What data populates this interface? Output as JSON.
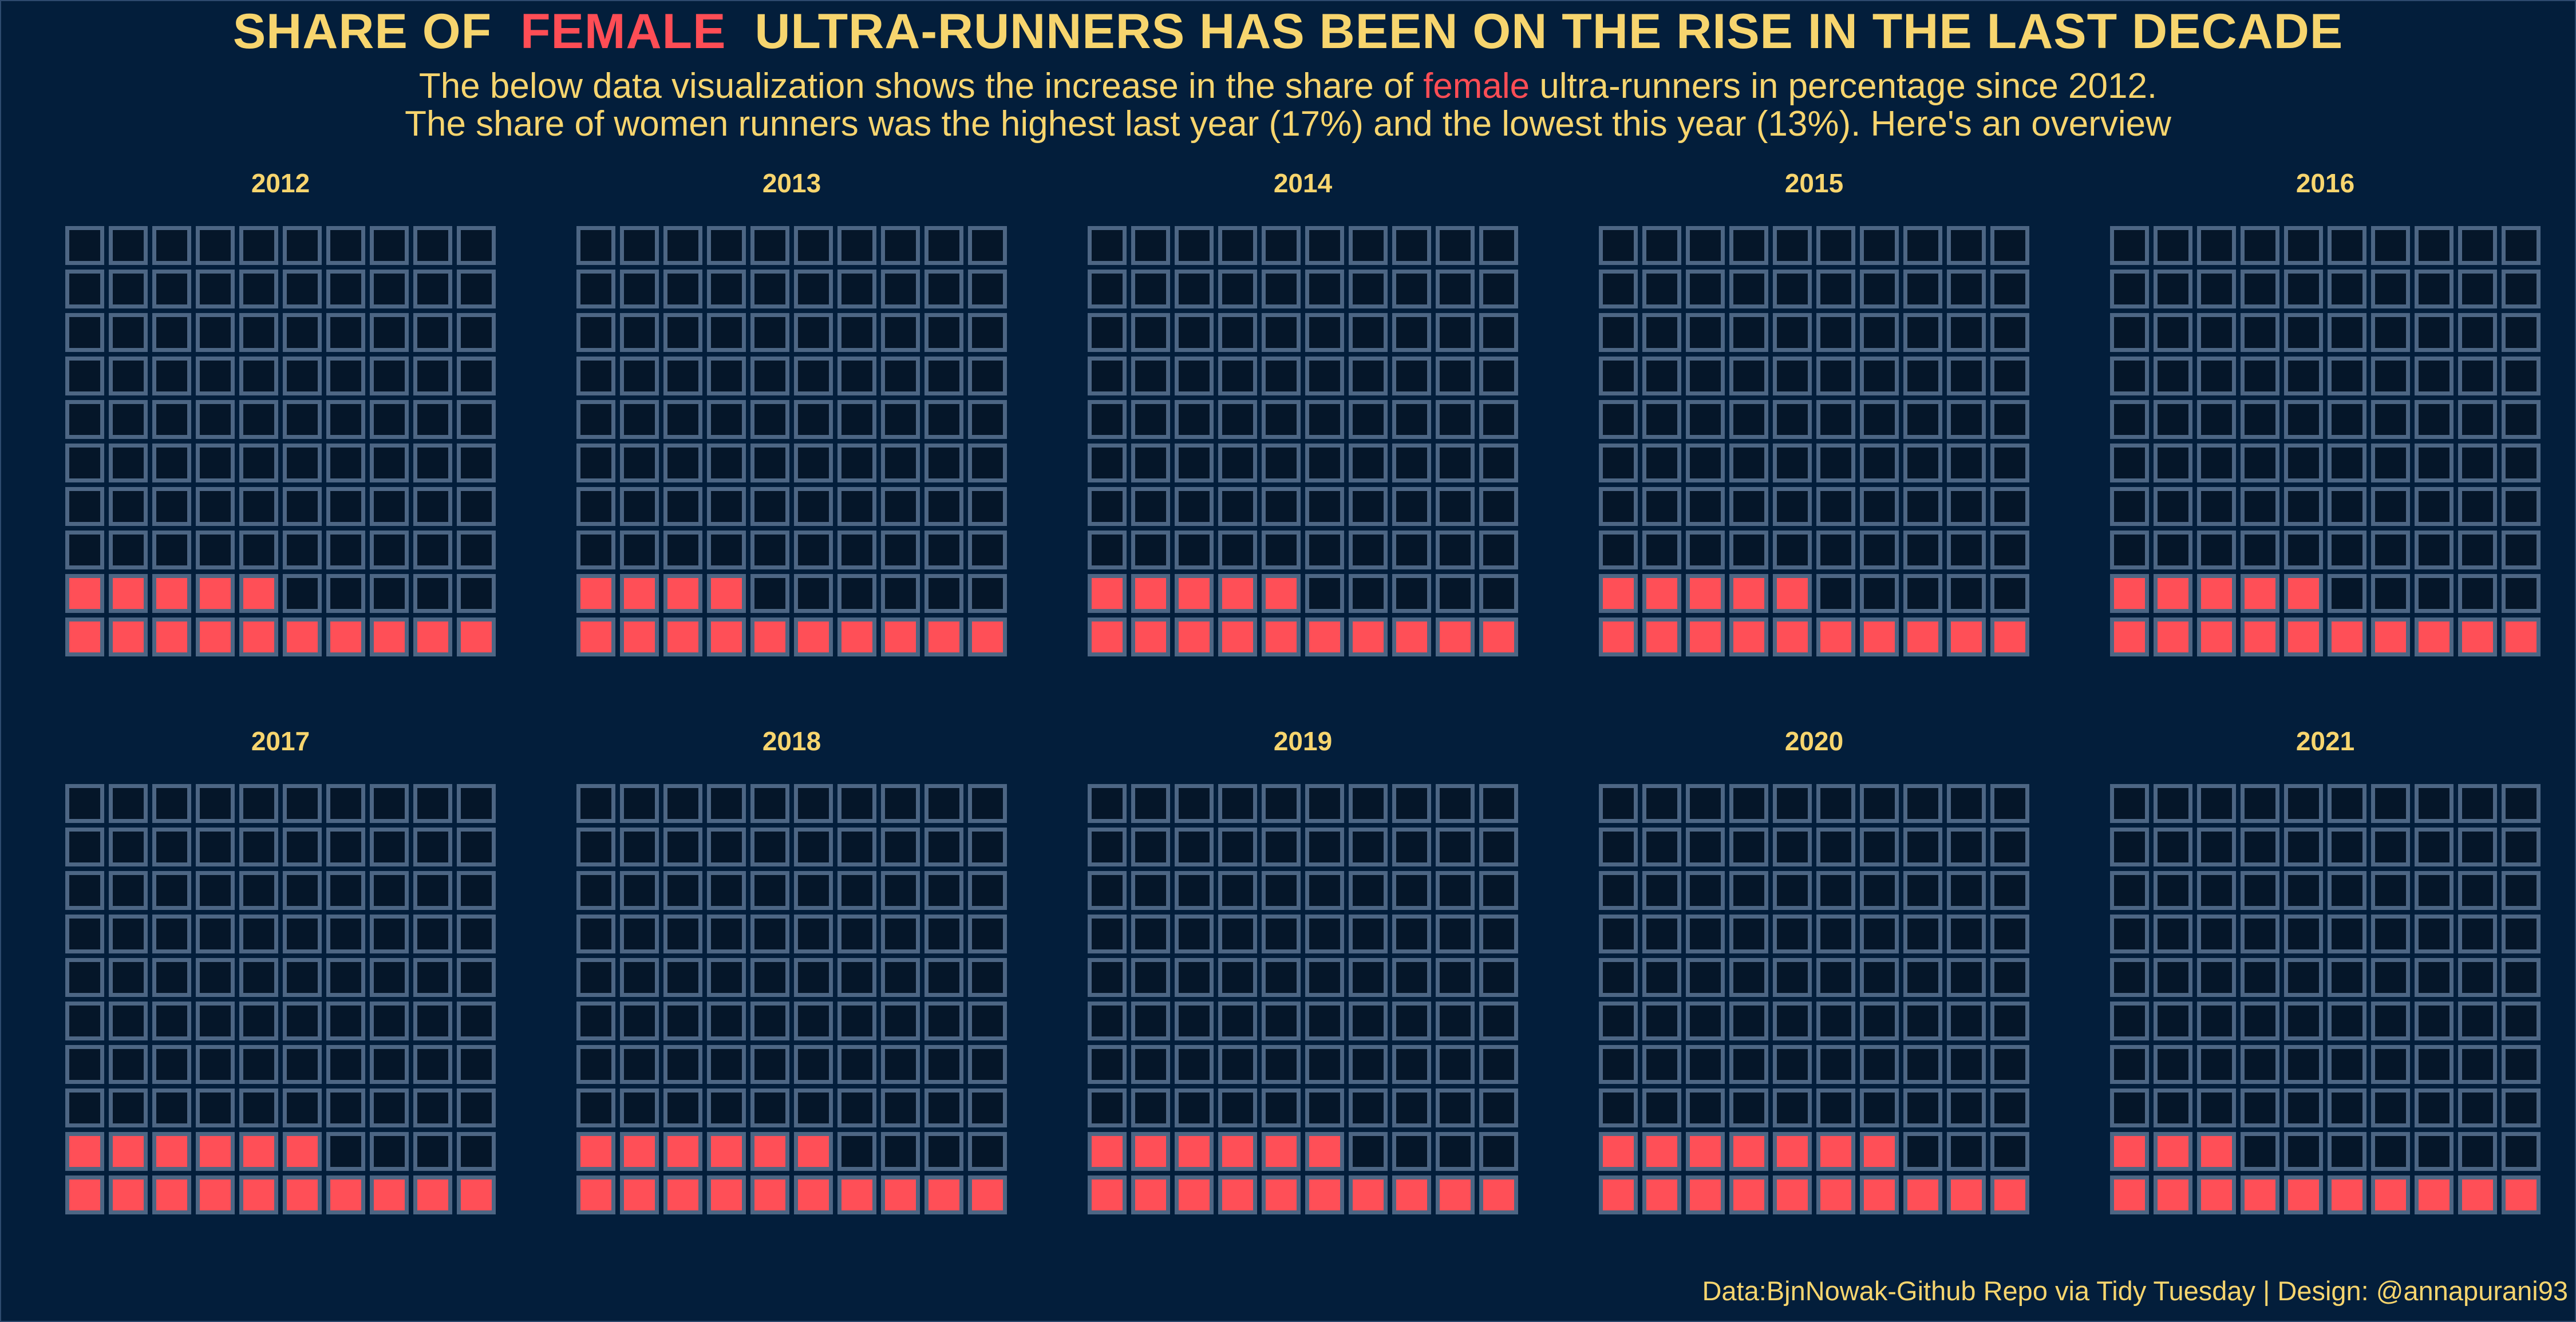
{
  "header": {
    "title_prefix": "SHARE OF",
    "title_highlight": "FEMALE",
    "title_suffix": "ULTRA-RUNNERS HAS BEEN ON THE RISE IN THE LAST DECADE",
    "subtitle_line1_prefix": "The below data visualization shows the increase in the share of",
    "subtitle_line1_highlight": "female",
    "subtitle_line1_suffix": "ultra-runners in percentage since 2012.",
    "subtitle_line2": "The share of women runners was the highest last year (17%) and the lowest this year (13%). Here's an overview"
  },
  "caption": "Data:BjnNowak-Github Repo via Tidy Tuesday | Design: @annapurani93",
  "colors": {
    "background": "#031e3b",
    "female": "#ff4f57",
    "empty_cell": "#051629",
    "cell_border": "#4d6684",
    "text": "#f7d56e"
  },
  "chart_data": {
    "type": "waffle",
    "grid": {
      "rows": 10,
      "columns": 10
    },
    "unit": "percent of runners",
    "series": [
      {
        "name": "female",
        "color": "#ff4f57"
      }
    ],
    "panels": [
      {
        "year": "2012",
        "female_pct": 15
      },
      {
        "year": "2013",
        "female_pct": 14
      },
      {
        "year": "2014",
        "female_pct": 15
      },
      {
        "year": "2015",
        "female_pct": 15
      },
      {
        "year": "2016",
        "female_pct": 15
      },
      {
        "year": "2017",
        "female_pct": 16
      },
      {
        "year": "2018",
        "female_pct": 16
      },
      {
        "year": "2019",
        "female_pct": 16
      },
      {
        "year": "2020",
        "female_pct": 17
      },
      {
        "year": "2021",
        "female_pct": 13
      }
    ]
  }
}
